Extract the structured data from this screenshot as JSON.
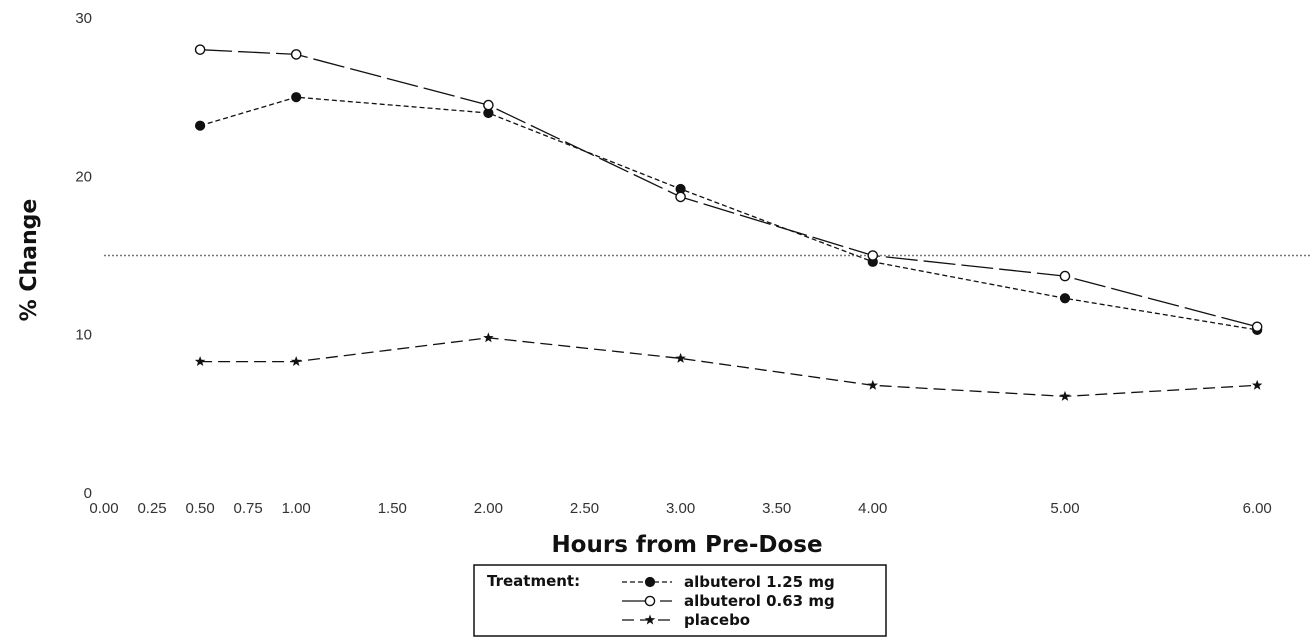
{
  "chart_data": {
    "type": "line",
    "title": "",
    "xlabel": "Hours from Pre-Dose",
    "ylabel": "% Change",
    "xlim": [
      0,
      6.15
    ],
    "ylim": [
      0,
      30
    ],
    "x_ticks": [
      "0.00",
      "0.25",
      "0.50",
      "0.75",
      "1.00",
      "1.50",
      "2.00",
      "2.50",
      "3.00",
      "3.50",
      "4.00",
      "5.00",
      "6.00"
    ],
    "y_ticks": [
      "0",
      "10",
      "20",
      "30"
    ],
    "grid": false,
    "reference_line": {
      "y": 15
    },
    "legend": {
      "position": "bottom-center",
      "title": "Treatment:"
    },
    "series": [
      {
        "name": "albuterol 1.25 mg",
        "marker": "filled-circle",
        "line_style": "short-dash",
        "x": [
          0.5,
          1.0,
          2.0,
          3.0,
          4.0,
          5.0,
          6.0
        ],
        "y": [
          23.2,
          25.0,
          24.0,
          19.2,
          14.6,
          12.3,
          10.3
        ]
      },
      {
        "name": "albuterol 0.63 mg",
        "marker": "open-circle",
        "line_style": "long-dash",
        "x": [
          0.5,
          1.0,
          2.0,
          3.0,
          4.0,
          5.0,
          6.0
        ],
        "y": [
          28.0,
          27.7,
          24.5,
          18.7,
          15.0,
          13.7,
          10.5
        ]
      },
      {
        "name": "placebo",
        "marker": "star",
        "line_style": "dash",
        "x": [
          0.5,
          1.0,
          2.0,
          3.0,
          4.0,
          5.0,
          6.0
        ],
        "y": [
          8.3,
          8.3,
          9.8,
          8.5,
          6.8,
          6.1,
          6.8
        ]
      }
    ]
  }
}
